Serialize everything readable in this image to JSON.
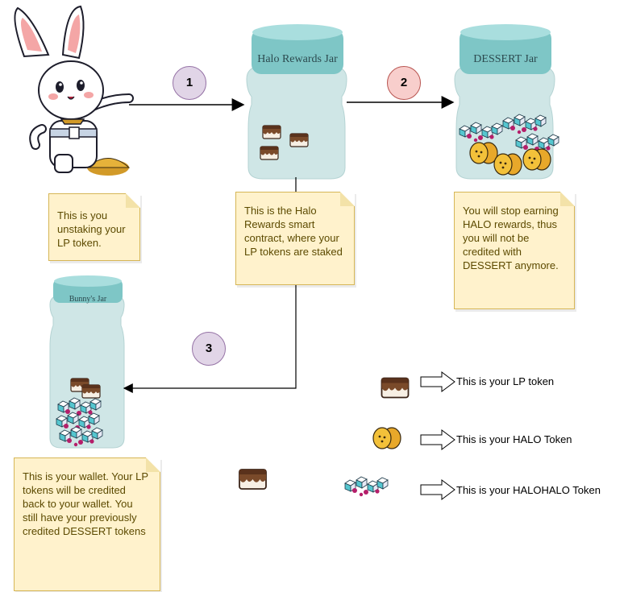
{
  "steps": [
    "1",
    "2",
    "3"
  ],
  "jars": {
    "halo_rewards": "Halo Rewards Jar",
    "dessert": "DESSERT Jar",
    "bunny": "Bunny's Jar"
  },
  "notes": {
    "you": "This is you unstaking your LP token.",
    "halo_contract": "This is the Halo Rewards smart contract, where your LP tokens are staked",
    "stop_earning": "You will stop earning HALO rewards, thus  you will not be credited with DESSERT anymore.",
    "wallet": "This is your wallet. Your LP tokens will be credited back to your wallet. You still have your previously credited DESSERT tokens"
  },
  "legend": {
    "lp": "This is your LP token",
    "halo": "This is your HALO Token",
    "halohalo": "This is your HALOHALO Token"
  },
  "colors": {
    "jar_glass": "#cfe6e6",
    "jar_lid": "#7ec6c6",
    "note_fill": "#fff2cc",
    "note_border": "#d6b656",
    "step1_fill": "#e1d5e7",
    "step2_fill": "#f8cecc",
    "step3_fill": "#e1d5e7",
    "coin": "#f3c13a",
    "lp_chocolate": "#7a4a2a"
  }
}
